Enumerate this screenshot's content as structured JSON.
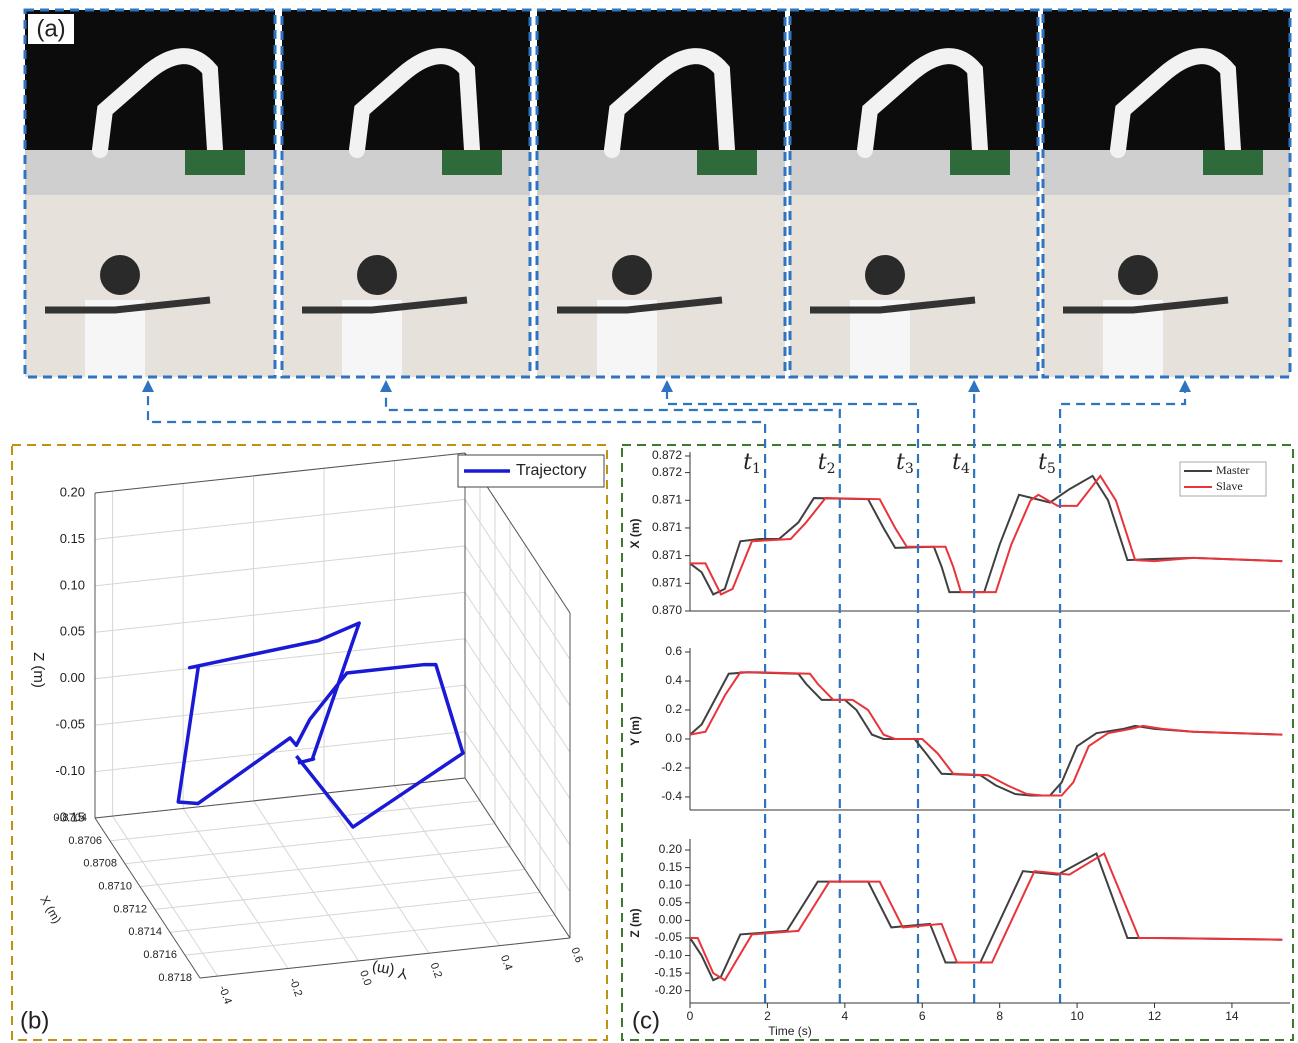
{
  "panel_labels": [
    "(a)",
    "(b)",
    "(c)"
  ],
  "chart_data": [
    {
      "type": "line3d",
      "xlabel": "X (m)",
      "ylabel": "Y (m)",
      "zlabel": "Z (m)",
      "xlim": [
        0.8704,
        0.8718
      ],
      "ylim": [
        -0.45,
        0.6
      ],
      "zlim": [
        -0.15,
        0.2
      ],
      "xticks": [
        0.8704,
        0.8706,
        0.8708,
        {
          "value": 0.871,
          "label": "0.8710"
        },
        0.8712,
        0.8714,
        0.8716,
        0.8718
      ],
      "yticks": [
        -0.4,
        -0.2,
        {
          "value": 0,
          "label": "0.0"
        },
        0.2,
        0.4,
        0.6
      ],
      "zticks": [
        {
          "value": 0.2,
          "label": "0.20"
        },
        0.15,
        {
          "value": 0.1,
          "label": "0.10"
        },
        0.05,
        {
          "value": 0,
          "label": "0.00"
        },
        -0.05,
        {
          "value": -0.1,
          "label": "-0.10"
        },
        -0.15
      ],
      "grid": true,
      "legend": "upper right",
      "series": [
        {
          "name": "Trajectory",
          "color": "#1a1ad6",
          "x": [
            0.87083,
            0.87055,
            0.87103,
            0.87105,
            0.87142,
            0.87141,
            0.87141,
            0.87115,
            0.87097,
            0.87098,
            0.8706,
            0.87057,
            0.87145,
            0.87138,
            0.8715,
            0.87162,
            0.87086,
            0.87087,
            0.87085
          ],
          "y": [
            0.03,
            0.25,
            0.46,
            0.45,
            0.3,
            0.27,
            0.05,
            0.0,
            0.0,
            -0.02,
            -0.2,
            -0.25,
            -0.38,
            -0.39,
            -0.05,
            0.04,
            0.07,
            0.07,
            0.03
          ],
          "z": [
            -0.05,
            -0.17,
            -0.04,
            -0.03,
            0.11,
            0.11,
            0.11,
            0.03,
            -0.02,
            -0.01,
            -0.12,
            -0.12,
            0.14,
            0.13,
            0.16,
            0.19,
            -0.05,
            -0.05,
            -0.055
          ]
        }
      ]
    },
    {
      "type": "line",
      "ylabel": "X (m)",
      "xlim": [
        0,
        15.5
      ],
      "ylim": [
        0.8704,
        0.8718
      ],
      "yticks": [
        {
          "value": 0.8704,
          "label": "0.870"
        },
        {
          "value": 0.87065,
          "label": "0.871"
        },
        {
          "value": 0.8709,
          "label": "0.871"
        },
        {
          "value": 0.87115,
          "label": "0.871"
        },
        {
          "value": 0.8714,
          "label": "0.871"
        },
        {
          "value": 0.87165,
          "label": "0.872"
        },
        {
          "value": 0.8718,
          "label": "0.872"
        }
      ],
      "legend": "upper right",
      "events": [
        {
          "label": "t",
          "sub": "1",
          "x": 1.94
        },
        {
          "label": "t",
          "sub": "2",
          "x": 3.87
        },
        {
          "label": "t",
          "sub": "3",
          "x": 5.89
        },
        {
          "label": "t",
          "sub": "4",
          "x": 7.34
        },
        {
          "label": "t",
          "sub": "5",
          "x": 9.56
        }
      ],
      "series": [
        {
          "name": "Master",
          "color": "#404040",
          "x": [
            0,
            0.3,
            0.6,
            0.9,
            1.3,
            1.8,
            2.3,
            2.8,
            3.2,
            4.6,
            5.0,
            5.3,
            6.3,
            6.5,
            6.7,
            7.6,
            8.0,
            8.5,
            9.3,
            9.8,
            10.4,
            10.8,
            11.3,
            12,
            13,
            15.3
          ],
          "values": [
            0.87083,
            0.87075,
            0.87055,
            0.8706,
            0.87103,
            0.87105,
            0.87105,
            0.8712,
            0.87142,
            0.87141,
            0.87115,
            0.87097,
            0.87098,
            0.8708,
            0.87057,
            0.87057,
            0.871,
            0.87145,
            0.87138,
            0.8715,
            0.87162,
            0.8714,
            0.87086,
            0.87087,
            0.87088,
            0.87085
          ]
        },
        {
          "name": "Slave",
          "color": "#e8343a",
          "x": [
            0,
            0.4,
            0.8,
            1.1,
            1.6,
            2.6,
            3.0,
            3.5,
            4.9,
            5.3,
            5.6,
            6.6,
            6.8,
            7.0,
            7.9,
            8.3,
            8.8,
            9.0,
            9.5,
            10.0,
            10.6,
            11.0,
            11.5,
            12,
            13,
            15.3
          ],
          "values": [
            0.87083,
            0.87083,
            0.87055,
            0.8706,
            0.87103,
            0.87105,
            0.8712,
            0.87142,
            0.87141,
            0.87115,
            0.87098,
            0.87098,
            0.8708,
            0.87057,
            0.87057,
            0.871,
            0.8714,
            0.87145,
            0.87135,
            0.87135,
            0.87162,
            0.8714,
            0.87086,
            0.87085,
            0.87088,
            0.87085
          ]
        }
      ]
    },
    {
      "type": "line",
      "ylabel": "Y (m)",
      "xlim": [
        0,
        15.5
      ],
      "ylim": [
        -0.49,
        0.6
      ],
      "yticks": [
        0.6,
        0.4,
        0.2,
        {
          "value": 0,
          "label": "0.0"
        },
        -0.2,
        -0.4
      ],
      "series": [
        {
          "name": "Master",
          "color": "#404040",
          "x": [
            0,
            0.3,
            0.7,
            1.0,
            1.5,
            2.8,
            3.0,
            3.4,
            4.0,
            4.3,
            4.7,
            5.0,
            5.8,
            6.1,
            6.5,
            7.5,
            7.9,
            8.4,
            8.8,
            9.3,
            9.6,
            10.0,
            10.5,
            11.2,
            11.5,
            12,
            13,
            15.3
          ],
          "values": [
            0.03,
            0.1,
            0.3,
            0.45,
            0.46,
            0.45,
            0.38,
            0.27,
            0.27,
            0.2,
            0.03,
            0.0,
            0.0,
            -0.1,
            -0.24,
            -0.25,
            -0.32,
            -0.38,
            -0.39,
            -0.39,
            -0.3,
            -0.05,
            0.04,
            0.07,
            0.09,
            0.07,
            0.05,
            0.03
          ]
        },
        {
          "name": "Slave",
          "color": "#e8343a",
          "x": [
            0,
            0.4,
            0.9,
            1.3,
            1.8,
            3.1,
            3.3,
            3.7,
            4.2,
            4.6,
            5.0,
            5.3,
            6.0,
            6.4,
            6.8,
            7.7,
            8.2,
            8.7,
            9.1,
            9.6,
            9.9,
            10.3,
            10.8,
            11.4,
            11.7,
            12.2,
            13,
            15.3
          ],
          "values": [
            0.03,
            0.05,
            0.3,
            0.46,
            0.46,
            0.45,
            0.38,
            0.27,
            0.27,
            0.2,
            0.03,
            0.0,
            0.0,
            -0.1,
            -0.24,
            -0.25,
            -0.32,
            -0.38,
            -0.39,
            -0.39,
            -0.3,
            -0.05,
            0.04,
            0.07,
            0.09,
            0.07,
            0.05,
            0.03
          ]
        }
      ]
    },
    {
      "type": "line",
      "ylabel": "Z (m)",
      "xlabel": "Time (s)",
      "xlim": [
        0,
        15.5
      ],
      "ylim": [
        -0.235,
        0.22
      ],
      "xticks": [
        0,
        2,
        4,
        6,
        8,
        10,
        12,
        14
      ],
      "yticks": [
        {
          "value": 0.2,
          "label": "0.20"
        },
        0.15,
        {
          "value": 0.1,
          "label": "0.10"
        },
        0.05,
        {
          "value": 0,
          "label": "0.00"
        },
        -0.05,
        {
          "value": -0.1,
          "label": "-0.10"
        },
        -0.15,
        {
          "value": -0.2,
          "label": "-0.20"
        }
      ],
      "series": [
        {
          "name": "Master",
          "color": "#404040",
          "x": [
            0,
            0.3,
            0.6,
            0.8,
            1.3,
            2.5,
            3.3,
            4.6,
            5.2,
            6.2,
            6.6,
            7.5,
            8.6,
            9.5,
            10.5,
            11.3,
            12,
            15.3
          ],
          "values": [
            -0.05,
            -0.1,
            -0.17,
            -0.16,
            -0.04,
            -0.03,
            0.11,
            0.11,
            -0.02,
            -0.01,
            -0.12,
            -0.12,
            0.14,
            0.13,
            0.19,
            -0.05,
            -0.05,
            -0.055
          ]
        },
        {
          "name": "Slave",
          "color": "#e8343a",
          "x": [
            0,
            0.2,
            0.6,
            0.9,
            1.6,
            2.8,
            3.6,
            4.9,
            5.5,
            6.5,
            6.9,
            7.8,
            8.9,
            9.8,
            10.7,
            11.6,
            12.2,
            15.3
          ],
          "values": [
            -0.05,
            -0.05,
            -0.15,
            -0.17,
            -0.04,
            -0.03,
            0.11,
            0.11,
            -0.02,
            -0.01,
            -0.12,
            -0.12,
            0.14,
            0.13,
            0.19,
            -0.05,
            -0.05,
            -0.055
          ]
        }
      ]
    }
  ]
}
